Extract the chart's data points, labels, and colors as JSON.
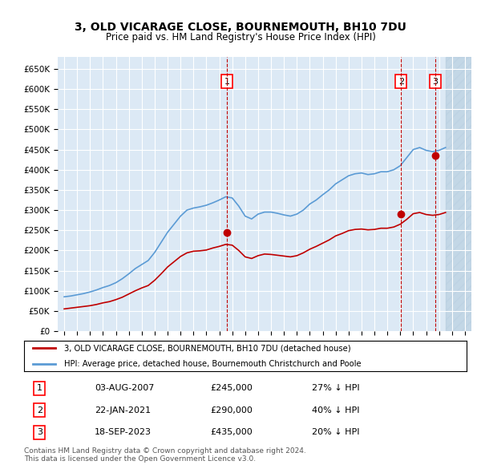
{
  "title": "3, OLD VICARAGE CLOSE, BOURNEMOUTH, BH10 7DU",
  "subtitle": "Price paid vs. HM Land Registry's House Price Index (HPI)",
  "ylabel": "",
  "bg_color": "#ffffff",
  "plot_bg_color": "#dce9f5",
  "grid_color": "#ffffff",
  "hpi_color": "#5b9bd5",
  "price_color": "#c00000",
  "hatch_color": "#b8cfe0",
  "sales": [
    {
      "label": "1",
      "date": 2007.58,
      "price": 245000,
      "note": "27% ↓ HPI"
    },
    {
      "label": "2",
      "date": 2021.06,
      "price": 290000,
      "note": "40% ↓ HPI"
    },
    {
      "label": "3",
      "date": 2023.72,
      "price": 435000,
      "note": "20% ↓ HPI"
    }
  ],
  "sale_dates_display": [
    "03-AUG-2007",
    "22-JAN-2021",
    "18-SEP-2023"
  ],
  "sale_prices_display": [
    "£245,000",
    "£290,000",
    "£435,000"
  ],
  "sale_notes_display": [
    "27% ↓ HPI",
    "40% ↓ HPI",
    "20% ↓ HPI"
  ],
  "legend_line1": "3, OLD VICARAGE CLOSE, BOURNEMOUTH, BH10 7DU (detached house)",
  "legend_line2": "HPI: Average price, detached house, Bournemouth Christchurch and Poole",
  "footnote": "Contains HM Land Registry data © Crown copyright and database right 2024.\nThis data is licensed under the Open Government Licence v3.0.",
  "ylim": [
    0,
    680000
  ],
  "yticks": [
    0,
    50000,
    100000,
    150000,
    200000,
    250000,
    300000,
    350000,
    400000,
    450000,
    500000,
    550000,
    600000,
    650000
  ],
  "xlim_start": 1994.5,
  "xlim_end": 2026.5,
  "future_start": 2024.5
}
